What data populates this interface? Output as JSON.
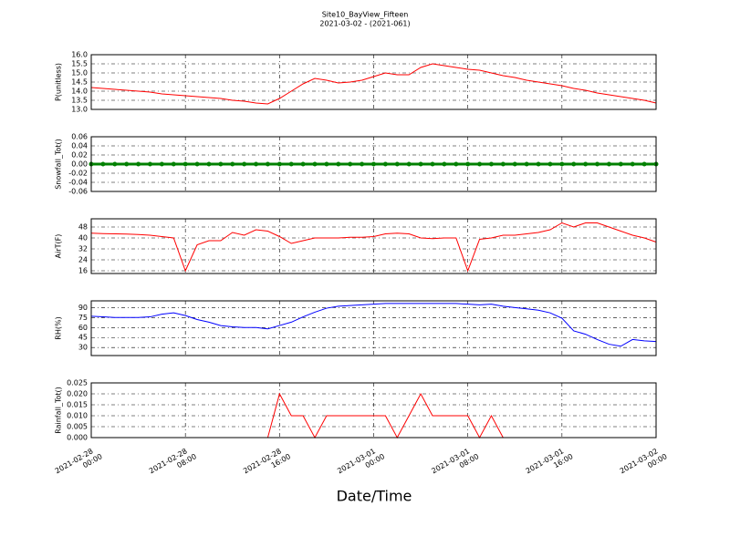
{
  "title": "Site10_BayView_Fifteen",
  "subtitle": "2021-03-02 - (2021-061)",
  "xlabel": "Date/Time",
  "xlim": [
    "2021-02-28 00:00",
    "2021-03-02 00:00"
  ],
  "xticks": [
    {
      "value": "2021-02-28 00:00",
      "label": [
        "2021-02-28",
        "00:00"
      ]
    },
    {
      "value": "2021-02-28 08:00",
      "label": [
        "2021-02-28",
        "08:00"
      ]
    },
    {
      "value": "2021-02-28 16:00",
      "label": [
        "2021-02-28",
        "16:00"
      ]
    },
    {
      "value": "2021-03-01 00:00",
      "label": [
        "2021-03-01",
        "00:00"
      ]
    },
    {
      "value": "2021-03-01 08:00",
      "label": [
        "2021-03-01",
        "08:00"
      ]
    },
    {
      "value": "2021-03-01 16:00",
      "label": [
        "2021-03-01",
        "16:00"
      ]
    },
    {
      "value": "2021-03-02 00:00",
      "label": [
        "2021-03-02",
        "00:00"
      ]
    }
  ],
  "x": [
    "2021-02-28 00:00",
    "2021-02-28 01:00",
    "2021-02-28 02:00",
    "2021-02-28 03:00",
    "2021-02-28 04:00",
    "2021-02-28 05:00",
    "2021-02-28 06:00",
    "2021-02-28 07:00",
    "2021-02-28 08:00",
    "2021-02-28 09:00",
    "2021-02-28 10:00",
    "2021-02-28 11:00",
    "2021-02-28 12:00",
    "2021-02-28 13:00",
    "2021-02-28 14:00",
    "2021-02-28 15:00",
    "2021-02-28 16:00",
    "2021-02-28 17:00",
    "2021-02-28 18:00",
    "2021-02-28 19:00",
    "2021-02-28 20:00",
    "2021-02-28 21:00",
    "2021-02-28 22:00",
    "2021-02-28 23:00",
    "2021-03-01 00:00",
    "2021-03-01 01:00",
    "2021-03-01 02:00",
    "2021-03-01 03:00",
    "2021-03-01 04:00",
    "2021-03-01 05:00",
    "2021-03-01 06:00",
    "2021-03-01 07:00",
    "2021-03-01 08:00",
    "2021-03-01 09:00",
    "2021-03-01 10:00",
    "2021-03-01 11:00",
    "2021-03-01 12:00",
    "2021-03-01 13:00",
    "2021-03-01 14:00",
    "2021-03-01 15:00",
    "2021-03-01 16:00",
    "2021-03-01 17:00",
    "2021-03-01 18:00",
    "2021-03-01 19:00",
    "2021-03-01 20:00",
    "2021-03-01 21:00",
    "2021-03-01 22:00",
    "2021-03-01 23:00",
    "2021-03-02 00:00"
  ],
  "chart_data": [
    {
      "type": "line",
      "ylabel": "P(unitless)",
      "ylim": [
        13,
        16
      ],
      "grid": true,
      "yticks": [
        {
          "value": 13,
          "label": "13.0"
        },
        13.5,
        {
          "value": 14,
          "label": "14.0"
        },
        14.5,
        {
          "value": 15,
          "label": "15.0"
        },
        15.5,
        {
          "value": 16,
          "label": "16.0"
        }
      ],
      "series": [
        {
          "name": "P",
          "color": "#ff0000",
          "values": [
            14.2,
            14.15,
            14.1,
            14.05,
            14.0,
            13.95,
            13.85,
            13.8,
            13.75,
            13.7,
            13.65,
            13.6,
            13.5,
            13.45,
            13.35,
            13.3,
            13.6,
            14.0,
            14.4,
            14.7,
            14.6,
            14.45,
            14.5,
            14.6,
            14.8,
            15.0,
            14.9,
            14.9,
            15.3,
            15.5,
            15.4,
            15.3,
            15.2,
            15.15,
            15.0,
            14.85,
            14.75,
            14.6,
            14.5,
            14.4,
            14.3,
            14.15,
            14.05,
            13.9,
            13.8,
            13.7,
            13.6,
            13.5,
            13.35
          ]
        }
      ]
    },
    {
      "type": "line",
      "ylabel": "Snowfall_Tot()",
      "ylim": [
        -0.06,
        0.06
      ],
      "grid": true,
      "yticks": [
        -0.06,
        -0.04,
        -0.02,
        {
          "value": 0,
          "label": "0.00"
        },
        0.02,
        0.04,
        0.06
      ],
      "series": [
        {
          "name": "Snowfall",
          "color": "#008000",
          "marker": "o",
          "values": [
            0,
            0,
            0,
            0,
            0,
            0,
            0,
            0,
            0,
            0,
            0,
            0,
            0,
            0,
            0,
            0,
            0,
            0,
            0,
            0,
            0,
            0,
            0,
            0,
            0,
            0,
            0,
            0,
            0,
            0,
            0,
            0,
            0,
            0,
            0,
            0,
            0,
            0,
            0,
            0,
            0,
            0,
            0,
            0,
            0,
            0,
            0,
            0,
            0
          ]
        }
      ]
    },
    {
      "type": "line",
      "ylabel": "AirT(F)",
      "ylim": [
        14,
        54
      ],
      "grid": true,
      "yticks": [
        16,
        24,
        32,
        40,
        48
      ],
      "series": [
        {
          "name": "AirT",
          "color": "#ff0000",
          "values": [
            43.5,
            43.2,
            43,
            42.8,
            42.5,
            42,
            41,
            40,
            16,
            35,
            38,
            38,
            44,
            42,
            46,
            45,
            41,
            36,
            38,
            40,
            40,
            40,
            40.5,
            40.5,
            41,
            43,
            43.5,
            43,
            40,
            39.5,
            40,
            40,
            16,
            39,
            40,
            42,
            42,
            43,
            44,
            46,
            51,
            48,
            51,
            51,
            48,
            45,
            42,
            40,
            37
          ]
        }
      ]
    },
    {
      "type": "line",
      "ylabel": "RH(%)",
      "ylim": [
        18,
        100
      ],
      "grid": true,
      "yticks": [
        30,
        45,
        60,
        75,
        90
      ],
      "series": [
        {
          "name": "RH",
          "color": "#0000ff",
          "values": [
            77,
            76,
            75,
            75,
            75,
            76,
            80,
            82,
            78,
            72,
            68,
            63,
            61,
            60,
            60,
            58,
            63,
            68,
            76,
            83,
            89,
            92,
            93,
            94,
            95,
            96,
            96,
            96,
            96,
            96,
            96,
            96,
            95,
            94,
            95,
            92,
            90,
            88,
            86,
            82,
            74,
            55,
            50,
            42,
            35,
            32,
            42,
            40,
            39
          ]
        }
      ]
    },
    {
      "type": "line",
      "ylabel": "Rainfall_Tot()",
      "ylim": [
        0,
        0.025
      ],
      "grid": true,
      "yticks": [
        {
          "value": 0,
          "label": "0.000"
        },
        {
          "value": 0.005,
          "label": "0.005"
        },
        {
          "value": 0.01,
          "label": "0.010"
        },
        {
          "value": 0.015,
          "label": "0.015"
        },
        {
          "value": 0.02,
          "label": "0.020"
        },
        {
          "value": 0.025,
          "label": "0.025"
        }
      ],
      "series": [
        {
          "name": "Rainfall",
          "color": "#ff0000",
          "values": [
            0,
            0,
            0,
            0,
            0,
            0,
            0,
            0,
            0,
            0,
            0,
            0,
            0,
            0,
            0,
            0,
            0.02,
            0.01,
            0.01,
            0,
            0.01,
            0.01,
            0.01,
            0.01,
            0.01,
            0.01,
            0,
            0.01,
            0.02,
            0.01,
            0.01,
            0.01,
            0.01,
            0,
            0.01,
            0,
            0,
            0,
            0,
            0,
            0,
            0,
            0,
            0,
            0,
            0,
            0,
            0,
            0
          ]
        }
      ]
    }
  ]
}
